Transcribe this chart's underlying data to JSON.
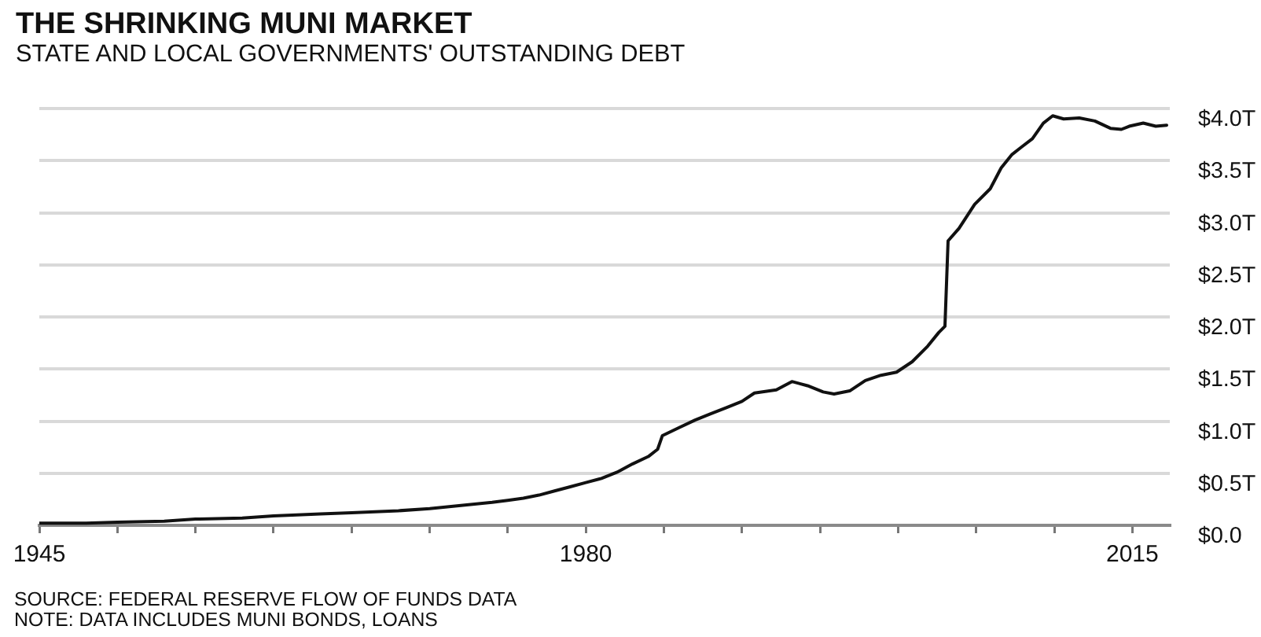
{
  "chart_data": {
    "type": "line",
    "title": "THE SHRINKING MUNI MARKET",
    "subtitle": "STATE AND LOCAL GOVERNMENTS' OUTSTANDING DEBT",
    "annotations": [
      "SOURCE: FEDERAL RESERVE FLOW OF FUNDS DATA",
      "NOTE: DATA INCLUDES MUNI BONDS, LOANS"
    ],
    "x": [
      1945,
      1948,
      1950,
      1953,
      1955,
      1958,
      1960,
      1963,
      1965,
      1968,
      1970,
      1972,
      1974,
      1975,
      1976,
      1977,
      1978,
      1979,
      1980,
      1981,
      1982,
      1983,
      1984,
      1984.6,
      1984.9,
      1986,
      1987,
      1988,
      1989,
      1990,
      1990.8,
      1992.2,
      1993.2,
      1994.2,
      1995.2,
      1995.9,
      1996.9,
      1997.9,
      1998.9,
      1999.9,
      2000.9,
      2001.9,
      2002.6,
      2003.0,
      2003.2,
      2003.9,
      2004.9,
      2005.9,
      2006.6,
      2007.3,
      2007.9,
      2008.6,
      2009.3,
      2009.9,
      2010.6,
      2011.6,
      2012.6,
      2013.6,
      2014.3,
      2014.8,
      2015.7,
      2016.5,
      2017.2
    ],
    "series": [
      {
        "color": "#111111",
        "values": [
          0.02,
          0.02,
          0.03,
          0.04,
          0.06,
          0.07,
          0.09,
          0.11,
          0.12,
          0.14,
          0.16,
          0.19,
          0.22,
          0.24,
          0.26,
          0.29,
          0.33,
          0.37,
          0.41,
          0.45,
          0.51,
          0.59,
          0.66,
          0.73,
          0.86,
          0.94,
          1.01,
          1.07,
          1.13,
          1.19,
          1.27,
          1.3,
          1.38,
          1.34,
          1.28,
          1.26,
          1.29,
          1.39,
          1.44,
          1.47,
          1.57,
          1.72,
          1.85,
          1.91,
          2.73,
          2.85,
          3.08,
          3.23,
          3.43,
          3.56,
          3.63,
          3.71,
          3.86,
          3.93,
          3.9,
          3.91,
          3.88,
          3.81,
          3.8,
          3.83,
          3.86,
          3.83,
          3.84
        ]
      }
    ],
    "xlim": [
      1945,
      2017.4
    ],
    "xticks": [
      1945,
      {
        "value": 1950,
        "label": null
      },
      {
        "value": 1955,
        "label": null
      },
      {
        "value": 1960,
        "label": null
      },
      {
        "value": 1965,
        "label": null
      },
      {
        "value": 1970,
        "label": null
      },
      {
        "value": 1975,
        "label": null
      },
      1980,
      {
        "value": 1985,
        "label": null
      },
      {
        "value": 1990,
        "label": null
      },
      {
        "value": 1995,
        "label": null
      },
      {
        "value": 2000,
        "label": null
      },
      {
        "value": 2005,
        "label": null
      },
      {
        "value": 2010,
        "label": null
      },
      2015
    ],
    "ylim": [
      0,
      4
    ],
    "yticks": [
      {
        "value": 0,
        "label": "$0.0"
      },
      {
        "value": 0.5,
        "label": "$0.5T"
      },
      {
        "value": 1,
        "label": "$1.0T"
      },
      {
        "value": 1.5,
        "label": "$1.5T"
      },
      {
        "value": 2,
        "label": "$2.0T"
      },
      {
        "value": 2.5,
        "label": "$2.5T"
      },
      {
        "value": 3,
        "label": "$3.0T"
      },
      {
        "value": 3.5,
        "label": "$3.5T"
      },
      {
        "value": 4,
        "label": "$4.0T"
      }
    ],
    "grid": "y",
    "marker": "none",
    "line_style": "solid"
  }
}
